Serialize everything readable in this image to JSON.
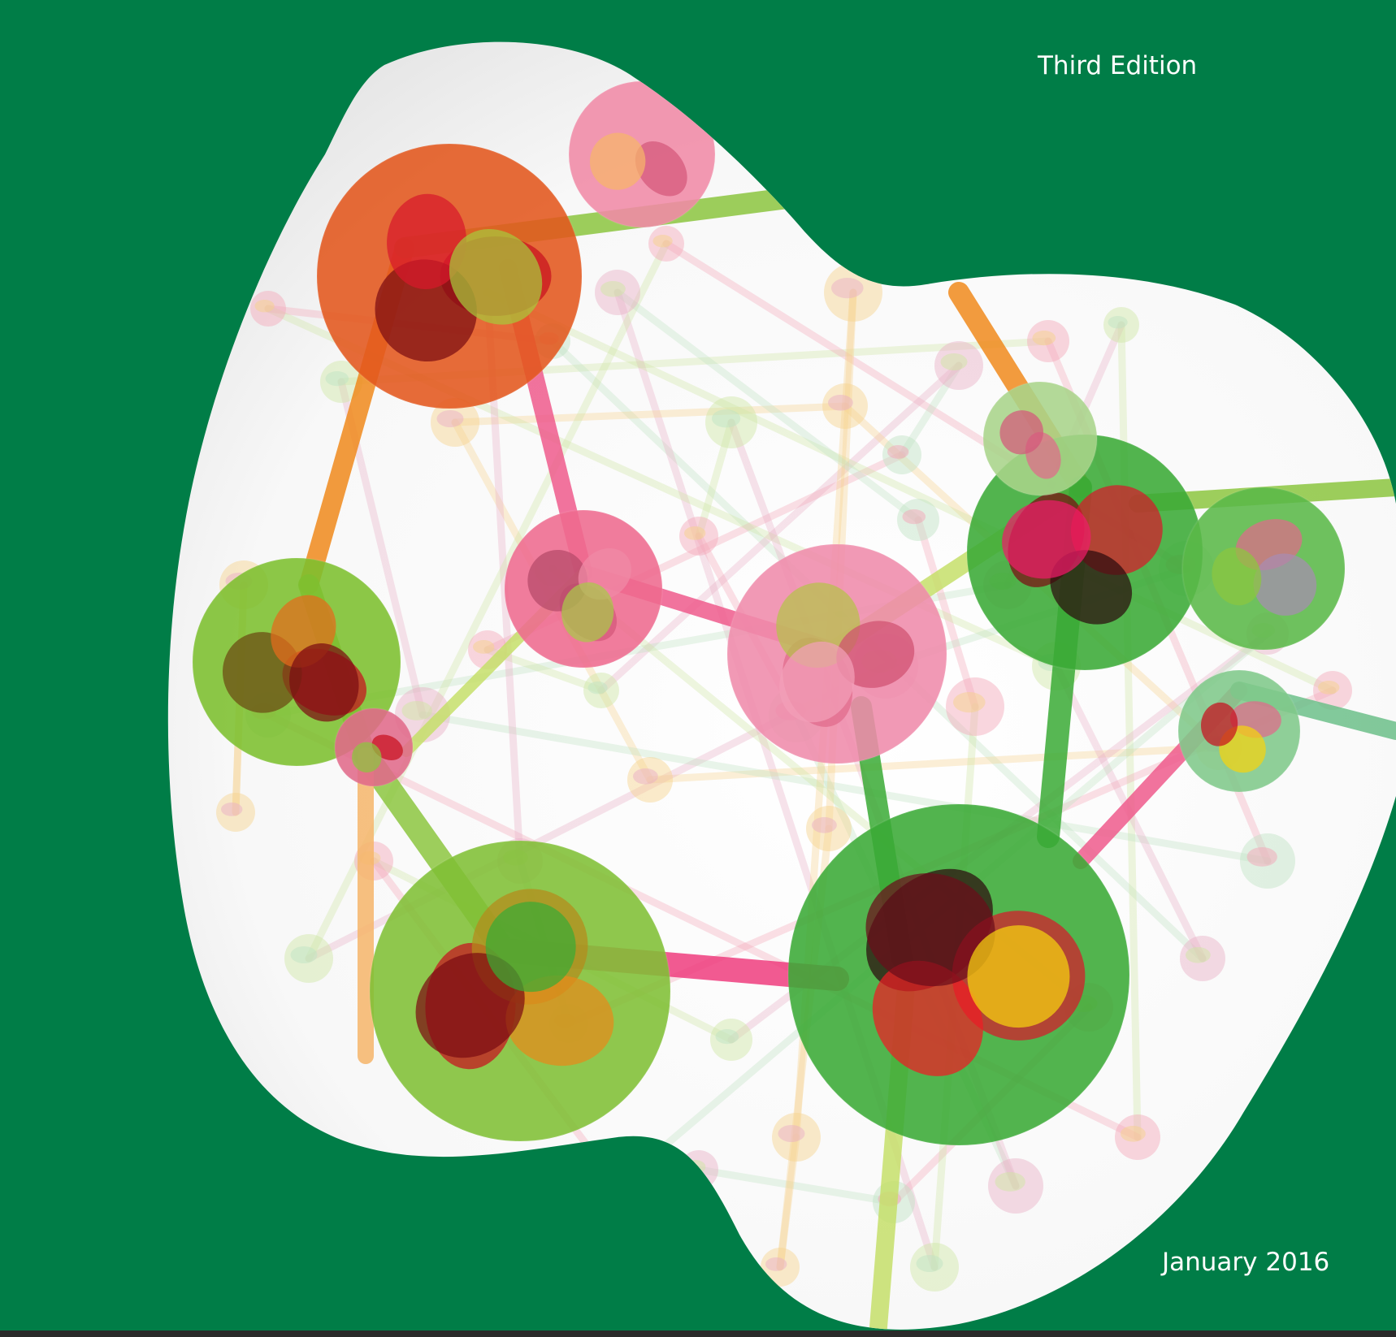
{
  "cover": {
    "edition": "Third Edition",
    "date": "January 2016"
  },
  "colors": {
    "background_green": "#007d47",
    "text": "#ffffff",
    "bond_orange": "#f08a1c",
    "bond_green": "#8cc63f",
    "bond_pink": "#ee3d7e",
    "atom_red": "#d7192b",
    "atom_green": "#3aaa35",
    "atom_dark": "#2b0b0e"
  },
  "illustration": {
    "subject": "molecule-network-illustration",
    "frame": "blob-window"
  }
}
